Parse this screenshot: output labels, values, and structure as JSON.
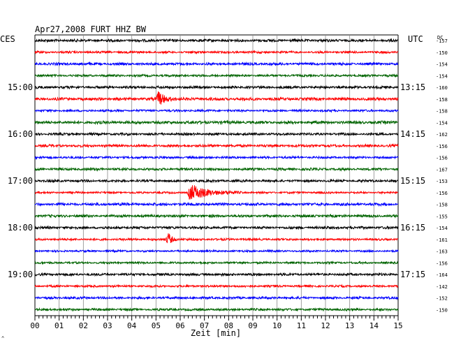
{
  "chart_data": {
    "type": "line",
    "title": "Apr27,2008   FURT HHZ BW",
    "left_timezone": "CES",
    "right_timezone": "UTC",
    "dc_label": "DC",
    "xlabel": "Zeit [min]",
    "x_ticks": [
      "00",
      "01",
      "02",
      "03",
      "04",
      "05",
      "06",
      "07",
      "08",
      "09",
      "10",
      "11",
      "12",
      "13",
      "14",
      "15"
    ],
    "xlim": [
      0,
      15
    ],
    "trace_colors": [
      "#000000",
      "#ff0000",
      "#0000ff",
      "#006400"
    ],
    "rows_per_hour": 4,
    "left_hour_labels": [
      {
        "row": 4,
        "label": "15:00"
      },
      {
        "row": 8,
        "label": "16:00"
      },
      {
        "row": 12,
        "label": "17:00"
      },
      {
        "row": 16,
        "label": "18:00"
      },
      {
        "row": 20,
        "label": "19:00"
      }
    ],
    "right_hour_labels": [
      {
        "row": 4,
        "label": "13:15"
      },
      {
        "row": 8,
        "label": "14:15"
      },
      {
        "row": 12,
        "label": "15:15"
      },
      {
        "row": 16,
        "label": "16:15"
      },
      {
        "row": 20,
        "label": "17:15"
      }
    ],
    "dc_offsets": [
      -157,
      -150,
      -154,
      -154,
      -160,
      -158,
      -158,
      -154,
      -162,
      -156,
      -156,
      -167,
      -153,
      -156,
      -158,
      -155,
      -154,
      -161,
      -163,
      -156,
      -164,
      -142,
      -152,
      -150
    ],
    "events": [
      {
        "row": 5,
        "minute": 5.1,
        "amplitude": 10,
        "duration_min": 0.9
      },
      {
        "row": 13,
        "minute": 6.4,
        "amplitude": 12,
        "duration_min": 2.2
      },
      {
        "row": 17,
        "minute": 5.5,
        "amplitude": 9,
        "duration_min": 0.5
      }
    ],
    "grid": true
  }
}
